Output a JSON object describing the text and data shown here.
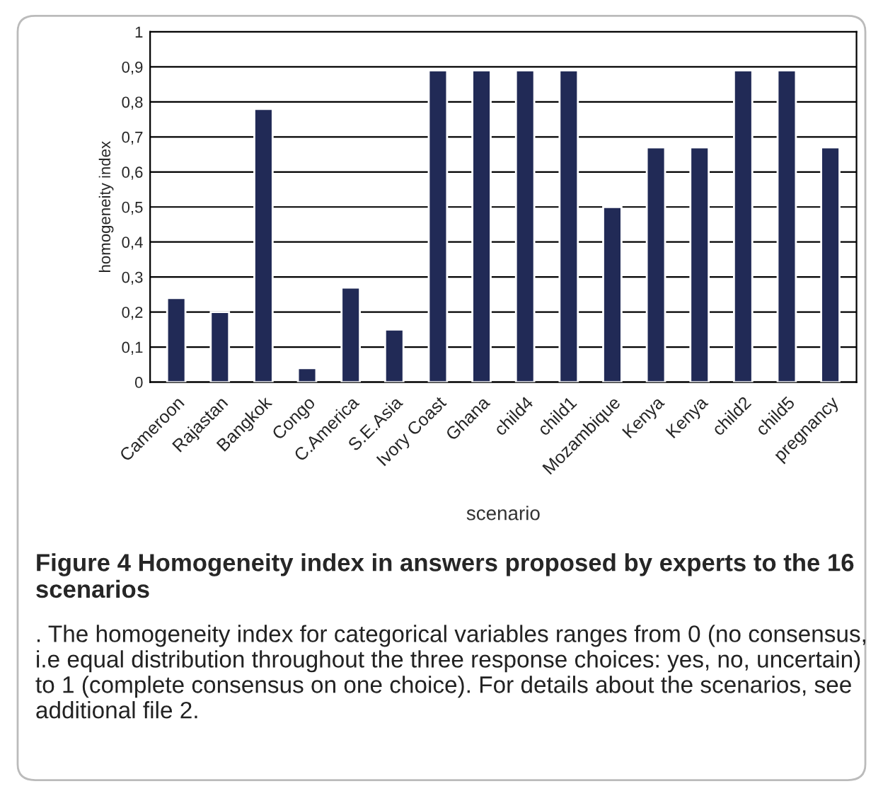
{
  "chart_data": {
    "type": "bar",
    "title": "Figure 4 Homogeneity index in answers proposed by experts to the 16 scenarios",
    "annotations": [
      ". The homogeneity index for categorical variables ranges from 0 (no consensus, i.e equal distribution throughout the three response choices: yes, no, uncertain) to 1 (complete consensus on one choice). For details about the scenarios, see additional file 2."
    ],
    "xlabel": "scenario",
    "ylabel": "homogeneity index",
    "categories": [
      "Cameroon",
      "Rajastan",
      "Bangkok",
      "Congo",
      "C.America",
      "S.E.Asia",
      "Ivory Coast",
      "Ghana",
      "child4",
      "child1",
      "Mozambique",
      "Kenya",
      "Kenya",
      "child2",
      "child5",
      "pregnancy"
    ],
    "values": [
      0.24,
      0.2,
      0.78,
      0.04,
      0.27,
      0.15,
      0.89,
      0.89,
      0.89,
      0.89,
      0.5,
      0.67,
      0.67,
      0.89,
      0.89,
      0.67
    ],
    "color": "#212a56",
    "ylim": [
      0,
      1
    ],
    "yticks": [
      0,
      {
        "value": 0.1,
        "label": "0,1"
      },
      {
        "value": 0.2,
        "label": "0,2"
      },
      {
        "value": 0.3,
        "label": "0,3"
      },
      {
        "value": 0.4,
        "label": "0,4"
      },
      {
        "value": 0.5,
        "label": "0,5"
      },
      {
        "value": 0.6,
        "label": "0,6"
      },
      {
        "value": 0.7,
        "label": "0,7"
      },
      {
        "value": 0.8,
        "label": "0,8"
      },
      {
        "value": 0.9,
        "label": "0,9"
      },
      1
    ],
    "grid": "y"
  }
}
